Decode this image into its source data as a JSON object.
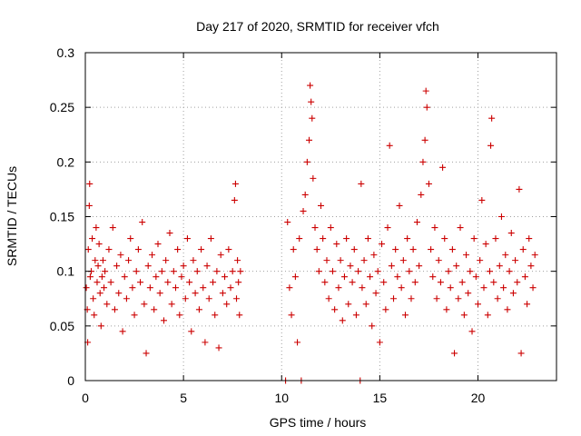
{
  "chart_data": {
    "type": "scatter",
    "title": "Day 217 of 2020, SRMTID for receiver vfch",
    "xlabel": "GPS time / hours",
    "ylabel": "SRMTID / TECUs",
    "xlim": [
      0,
      24
    ],
    "ylim": [
      0,
      0.3
    ],
    "x_ticks": [
      0,
      5,
      10,
      15,
      20
    ],
    "x_tick_labels": [
      "0",
      "5",
      "10",
      "15",
      "20"
    ],
    "y_ticks": [
      0,
      0.05,
      0.1,
      0.15,
      0.2,
      0.25,
      0.3
    ],
    "y_tick_labels": [
      "0",
      "0.05",
      "0.1",
      "0.15",
      "0.2",
      "0.25",
      "0.3"
    ],
    "grid": true,
    "marker": "plus",
    "colors": {
      "points": "#cc0000",
      "grid": "#a0a0a0",
      "axes": "#000000"
    },
    "series": [
      {
        "name": "SRMTID",
        "points": [
          [
            0.05,
            0.085
          ],
          [
            0.1,
            0.065
          ],
          [
            0.12,
            0.035
          ],
          [
            0.15,
            0.12
          ],
          [
            0.2,
            0.16
          ],
          [
            0.22,
            0.18
          ],
          [
            0.25,
            0.095
          ],
          [
            0.3,
            0.1
          ],
          [
            0.35,
            0.13
          ],
          [
            0.4,
            0.075
          ],
          [
            0.45,
            0.06
          ],
          [
            0.5,
            0.11
          ],
          [
            0.55,
            0.14
          ],
          [
            0.6,
            0.09
          ],
          [
            0.65,
            0.105
          ],
          [
            0.7,
            0.125
          ],
          [
            0.75,
            0.08
          ],
          [
            0.8,
            0.05
          ],
          [
            0.85,
            0.095
          ],
          [
            0.9,
            0.11
          ],
          [
            0.95,
            0.085
          ],
          [
            1.0,
            0.1
          ],
          [
            1.1,
            0.07
          ],
          [
            1.2,
            0.12
          ],
          [
            1.3,
            0.09
          ],
          [
            1.4,
            0.14
          ],
          [
            1.5,
            0.065
          ],
          [
            1.6,
            0.105
          ],
          [
            1.7,
            0.08
          ],
          [
            1.8,
            0.115
          ],
          [
            1.9,
            0.045
          ],
          [
            2.0,
            0.095
          ],
          [
            2.1,
            0.075
          ],
          [
            2.2,
            0.11
          ],
          [
            2.3,
            0.13
          ],
          [
            2.4,
            0.085
          ],
          [
            2.5,
            0.06
          ],
          [
            2.6,
            0.1
          ],
          [
            2.7,
            0.12
          ],
          [
            2.8,
            0.09
          ],
          [
            2.9,
            0.145
          ],
          [
            3.0,
            0.07
          ],
          [
            3.1,
            0.025
          ],
          [
            3.2,
            0.105
          ],
          [
            3.3,
            0.085
          ],
          [
            3.4,
            0.115
          ],
          [
            3.5,
            0.065
          ],
          [
            3.6,
            0.095
          ],
          [
            3.7,
            0.125
          ],
          [
            3.8,
            0.08
          ],
          [
            3.9,
            0.1
          ],
          [
            4.0,
            0.055
          ],
          [
            4.1,
            0.11
          ],
          [
            4.2,
            0.09
          ],
          [
            4.3,
            0.135
          ],
          [
            4.4,
            0.07
          ],
          [
            4.5,
            0.1
          ],
          [
            4.6,
            0.085
          ],
          [
            4.7,
            0.12
          ],
          [
            4.8,
            0.06
          ],
          [
            4.9,
            0.095
          ],
          [
            5.0,
            0.105
          ],
          [
            5.1,
            0.075
          ],
          [
            5.2,
            0.13
          ],
          [
            5.3,
            0.09
          ],
          [
            5.4,
            0.045
          ],
          [
            5.5,
            0.11
          ],
          [
            5.6,
            0.08
          ],
          [
            5.7,
            0.1
          ],
          [
            5.8,
            0.065
          ],
          [
            5.9,
            0.12
          ],
          [
            6.0,
            0.085
          ],
          [
            6.1,
            0.035
          ],
          [
            6.2,
            0.105
          ],
          [
            6.3,
            0.075
          ],
          [
            6.4,
            0.13
          ],
          [
            6.5,
            0.09
          ],
          [
            6.6,
            0.06
          ],
          [
            6.7,
            0.1
          ],
          [
            6.8,
            0.03
          ],
          [
            6.9,
            0.115
          ],
          [
            7.0,
            0.08
          ],
          [
            7.1,
            0.095
          ],
          [
            7.2,
            0.07
          ],
          [
            7.3,
            0.12
          ],
          [
            7.4,
            0.085
          ],
          [
            7.5,
            0.1
          ],
          [
            7.6,
            0.165
          ],
          [
            7.65,
            0.18
          ],
          [
            7.7,
            0.075
          ],
          [
            7.75,
            0.11
          ],
          [
            7.8,
            0.09
          ],
          [
            7.85,
            0.06
          ],
          [
            7.9,
            0.1
          ],
          [
            10.2,
            0.0
          ],
          [
            10.3,
            0.145
          ],
          [
            10.4,
            0.085
          ],
          [
            10.5,
            0.06
          ],
          [
            10.6,
            0.12
          ],
          [
            10.7,
            0.095
          ],
          [
            10.8,
            0.035
          ],
          [
            10.9,
            0.13
          ],
          [
            11.0,
            0.0
          ],
          [
            11.1,
            0.155
          ],
          [
            11.2,
            0.17
          ],
          [
            11.3,
            0.2
          ],
          [
            11.4,
            0.22
          ],
          [
            11.45,
            0.27
          ],
          [
            11.5,
            0.255
          ],
          [
            11.55,
            0.24
          ],
          [
            11.6,
            0.185
          ],
          [
            11.7,
            0.14
          ],
          [
            11.8,
            0.12
          ],
          [
            11.9,
            0.1
          ],
          [
            12.0,
            0.16
          ],
          [
            12.1,
            0.13
          ],
          [
            12.2,
            0.09
          ],
          [
            12.3,
            0.11
          ],
          [
            12.4,
            0.075
          ],
          [
            12.5,
            0.14
          ],
          [
            12.6,
            0.1
          ],
          [
            12.7,
            0.065
          ],
          [
            12.8,
            0.125
          ],
          [
            12.9,
            0.085
          ],
          [
            13.0,
            0.11
          ],
          [
            13.1,
            0.055
          ],
          [
            13.2,
            0.095
          ],
          [
            13.3,
            0.13
          ],
          [
            13.4,
            0.07
          ],
          [
            13.5,
            0.105
          ],
          [
            13.6,
            0.09
          ],
          [
            13.7,
            0.12
          ],
          [
            13.8,
            0.06
          ],
          [
            13.9,
            0.1
          ],
          [
            14.0,
            0.0
          ],
          [
            14.05,
            0.18
          ],
          [
            14.1,
            0.085
          ],
          [
            14.2,
            0.11
          ],
          [
            14.3,
            0.07
          ],
          [
            14.4,
            0.13
          ],
          [
            14.5,
            0.095
          ],
          [
            14.6,
            0.05
          ],
          [
            14.7,
            0.115
          ],
          [
            14.8,
            0.08
          ],
          [
            14.9,
            0.1
          ],
          [
            15.0,
            0.035
          ],
          [
            15.1,
            0.125
          ],
          [
            15.2,
            0.09
          ],
          [
            15.3,
            0.065
          ],
          [
            15.4,
            0.14
          ],
          [
            15.5,
            0.215
          ],
          [
            15.6,
            0.105
          ],
          [
            15.7,
            0.075
          ],
          [
            15.8,
            0.12
          ],
          [
            15.9,
            0.095
          ],
          [
            16.0,
            0.16
          ],
          [
            16.1,
            0.085
          ],
          [
            16.2,
            0.11
          ],
          [
            16.3,
            0.06
          ],
          [
            16.4,
            0.13
          ],
          [
            16.5,
            0.1
          ],
          [
            16.6,
            0.075
          ],
          [
            16.7,
            0.12
          ],
          [
            16.8,
            0.09
          ],
          [
            16.9,
            0.145
          ],
          [
            17.0,
            0.105
          ],
          [
            17.1,
            0.17
          ],
          [
            17.2,
            0.2
          ],
          [
            17.3,
            0.22
          ],
          [
            17.35,
            0.265
          ],
          [
            17.4,
            0.25
          ],
          [
            17.5,
            0.18
          ],
          [
            17.6,
            0.12
          ],
          [
            17.7,
            0.095
          ],
          [
            17.8,
            0.14
          ],
          [
            17.9,
            0.075
          ],
          [
            18.0,
            0.11
          ],
          [
            18.1,
            0.09
          ],
          [
            18.2,
            0.195
          ],
          [
            18.3,
            0.13
          ],
          [
            18.4,
            0.065
          ],
          [
            18.5,
            0.1
          ],
          [
            18.6,
            0.085
          ],
          [
            18.7,
            0.12
          ],
          [
            18.8,
            0.025
          ],
          [
            18.9,
            0.105
          ],
          [
            19.0,
            0.075
          ],
          [
            19.1,
            0.14
          ],
          [
            19.2,
            0.09
          ],
          [
            19.3,
            0.06
          ],
          [
            19.4,
            0.115
          ],
          [
            19.5,
            0.08
          ],
          [
            19.6,
            0.1
          ],
          [
            19.7,
            0.045
          ],
          [
            19.8,
            0.13
          ],
          [
            19.9,
            0.095
          ],
          [
            20.0,
            0.07
          ],
          [
            20.1,
            0.11
          ],
          [
            20.2,
            0.165
          ],
          [
            20.3,
            0.085
          ],
          [
            20.4,
            0.125
          ],
          [
            20.5,
            0.06
          ],
          [
            20.6,
            0.1
          ],
          [
            20.65,
            0.215
          ],
          [
            20.7,
            0.24
          ],
          [
            20.8,
            0.09
          ],
          [
            20.9,
            0.13
          ],
          [
            21.0,
            0.075
          ],
          [
            21.1,
            0.105
          ],
          [
            21.2,
            0.15
          ],
          [
            21.3,
            0.085
          ],
          [
            21.4,
            0.115
          ],
          [
            21.5,
            0.065
          ],
          [
            21.6,
            0.1
          ],
          [
            21.7,
            0.135
          ],
          [
            21.8,
            0.08
          ],
          [
            21.9,
            0.11
          ],
          [
            22.0,
            0.09
          ],
          [
            22.1,
            0.175
          ],
          [
            22.2,
            0.025
          ],
          [
            22.3,
            0.12
          ],
          [
            22.4,
            0.095
          ],
          [
            22.5,
            0.07
          ],
          [
            22.6,
            0.13
          ],
          [
            22.7,
            0.105
          ],
          [
            22.8,
            0.085
          ],
          [
            22.9,
            0.115
          ]
        ]
      }
    ]
  }
}
